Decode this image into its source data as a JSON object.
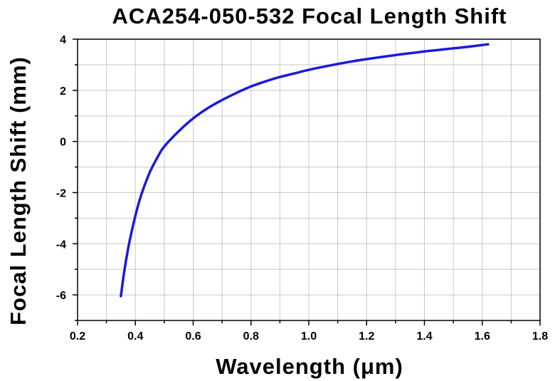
{
  "chart_data": {
    "type": "line",
    "title": "ACA254-050-532 Focal Length Shift",
    "xlabel": "Wavelength (μm)",
    "ylabel": "Focal Length Shift (mm)",
    "xlim": [
      0.2,
      1.8
    ],
    "ylim": [
      -7,
      4
    ],
    "xticks": [
      "0.2",
      "0.4",
      "0.6",
      "0.8",
      "1.0",
      "1.2",
      "1.4",
      "1.6",
      "1.8"
    ],
    "yticks": [
      "-6",
      "-4",
      "-2",
      "0",
      "2",
      "4"
    ],
    "grid": true,
    "line_color": "#1a1adb",
    "series": [
      {
        "x": [
          0.35,
          0.36,
          0.37,
          0.38,
          0.4,
          0.42,
          0.45,
          0.48,
          0.5,
          0.55,
          0.6,
          0.65,
          0.7,
          0.75,
          0.8,
          0.85,
          0.9,
          0.95,
          1.0,
          1.05,
          1.1,
          1.15,
          1.2,
          1.25,
          1.3,
          1.35,
          1.4,
          1.45,
          1.5,
          1.55,
          1.62
        ],
        "values": [
          -6.05,
          -5.2,
          -4.5,
          -3.9,
          -2.9,
          -2.1,
          -1.2,
          -0.55,
          -0.2,
          0.4,
          0.9,
          1.3,
          1.62,
          1.9,
          2.15,
          2.35,
          2.52,
          2.66,
          2.8,
          2.92,
          3.03,
          3.13,
          3.22,
          3.3,
          3.38,
          3.45,
          3.52,
          3.58,
          3.64,
          3.7,
          3.8
        ]
      }
    ]
  }
}
